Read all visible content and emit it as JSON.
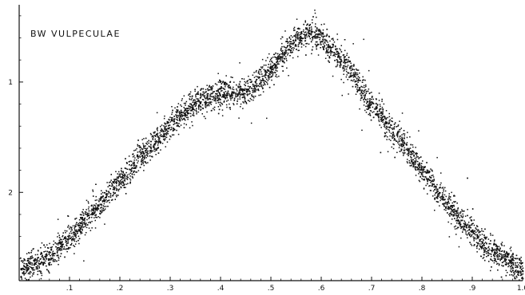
{
  "chart_data": {
    "type": "scatter",
    "title": "BW VULPECULAE",
    "xlabel": "",
    "ylabel": "",
    "xlim": [
      0,
      1.0
    ],
    "ylim": [
      2.8,
      0.3
    ],
    "y_inverted": true,
    "grid": false,
    "x_ticks": [
      0.1,
      0.2,
      0.3,
      0.4,
      0.5,
      0.6,
      0.7,
      0.8,
      0.9,
      1.0
    ],
    "x_tick_labels": [
      ".1",
      ".2",
      ".3",
      ".4",
      ".5",
      ".6",
      ".7",
      ".8",
      ".9",
      "1.0"
    ],
    "y_ticks": [
      1,
      2
    ],
    "y_tick_labels": [
      "1",
      "2"
    ],
    "series": [
      {
        "color": "#111111",
        "curve_x": [
          0.0,
          0.05,
          0.1,
          0.15,
          0.2,
          0.25,
          0.3,
          0.35,
          0.4,
          0.45,
          0.5,
          0.525,
          0.55,
          0.575,
          0.6,
          0.65,
          0.7,
          0.75,
          0.8,
          0.85,
          0.9,
          0.95,
          1.0
        ],
        "curve_y": [
          2.7,
          2.6,
          2.4,
          2.15,
          1.9,
          1.62,
          1.38,
          1.18,
          1.1,
          1.08,
          0.9,
          0.72,
          0.6,
          0.55,
          0.6,
          0.85,
          1.2,
          1.5,
          1.8,
          2.1,
          2.38,
          2.55,
          2.7
        ],
        "scatter_y": 0.06,
        "point_count": 5000
      }
    ]
  }
}
